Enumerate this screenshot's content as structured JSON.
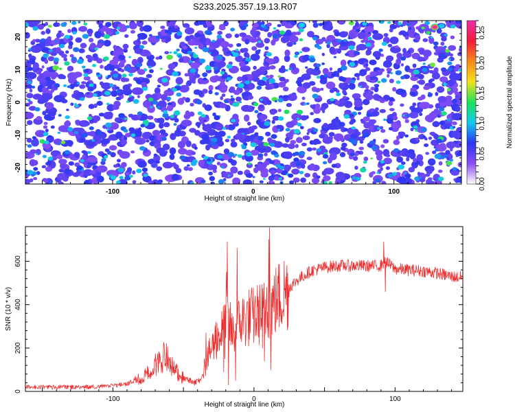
{
  "figure_title": "S233.2025.357.19.13.R07",
  "chart_data": [
    {
      "type": "heatmap",
      "title": "S233.2025.357.19.13.R07",
      "xlabel": "Height of straight line (km)",
      "ylabel": "Frequency (Hz)",
      "xlim": [
        -162,
        148
      ],
      "ylim": [
        -25,
        25
      ],
      "xticks": [
        -100,
        0,
        100
      ],
      "yticks": [
        -20,
        -10,
        0,
        10,
        20
      ],
      "colorbar": {
        "label": "Normalized spectral amplitude",
        "range": [
          0,
          0.27
        ],
        "ticks": [
          0.0,
          0.05,
          0.1,
          0.15,
          0.2,
          0.25
        ],
        "tick_labels": [
          "0.00",
          "0.05",
          "0.10",
          "0.15",
          "0.20",
          "0.25"
        ],
        "colormap": [
          "#ffffff",
          "#8a4ef5",
          "#2b36f2",
          "#14c8ee",
          "#1ce35a",
          "#f4e21c",
          "#f6891c",
          "#f21c3a",
          "#ec2fa8"
        ]
      },
      "peak": {
        "x": 129,
        "y": 23,
        "value": 0.27
      }
    },
    {
      "type": "line",
      "xlabel": "Height of straight line (km)",
      "ylabel": "SNR (10 * v/v)",
      "xlim": [
        -162,
        148
      ],
      "ylim": [
        0,
        760
      ],
      "xticks": [
        -100,
        0,
        100
      ],
      "yticks": [
        0,
        200,
        400,
        600
      ],
      "series": [
        {
          "name": "SNR",
          "color": "#ee2c2c",
          "x": [
            -162,
            -140,
            -120,
            -100,
            -90,
            -80,
            -72,
            -67,
            -62,
            -58,
            -50,
            -42,
            -38,
            -34,
            -30,
            -26,
            -22,
            -19,
            -17,
            -15,
            -12,
            -8,
            -4,
            0,
            4,
            8,
            10,
            12,
            16,
            20,
            25,
            30,
            40,
            50,
            60,
            70,
            80,
            90,
            93,
            100,
            110,
            120,
            130,
            140,
            148
          ],
          "values": [
            20,
            20,
            20,
            25,
            35,
            60,
            100,
            150,
            160,
            110,
            60,
            40,
            55,
            130,
            200,
            250,
            280,
            350,
            300,
            260,
            300,
            330,
            340,
            345,
            360,
            370,
            380,
            390,
            420,
            450,
            480,
            510,
            555,
            572,
            580,
            580,
            578,
            580,
            600,
            565,
            560,
            555,
            545,
            530,
            525
          ]
        }
      ],
      "spikes": [
        {
          "x": -19,
          "value": 690
        },
        {
          "x": -18,
          "value": 30
        },
        {
          "x": -19.5,
          "value": 550
        },
        {
          "x": -13,
          "value": 50
        },
        {
          "x": -20.5,
          "value": 150
        },
        {
          "x": -21.5,
          "value": 90
        },
        {
          "x": -12,
          "value": 660
        },
        {
          "x": -34,
          "value": 270
        },
        {
          "x": -27,
          "value": 320
        },
        {
          "x": 6,
          "value": 200
        },
        {
          "x": 11,
          "value": 755
        },
        {
          "x": 12,
          "value": 100
        },
        {
          "x": 10.5,
          "value": 700
        },
        {
          "x": 9,
          "value": 480
        },
        {
          "x": 7.5,
          "value": 140
        },
        {
          "x": 92,
          "value": 690
        },
        {
          "x": 93,
          "value": 460
        },
        {
          "x": 91,
          "value": 600
        }
      ]
    }
  ]
}
